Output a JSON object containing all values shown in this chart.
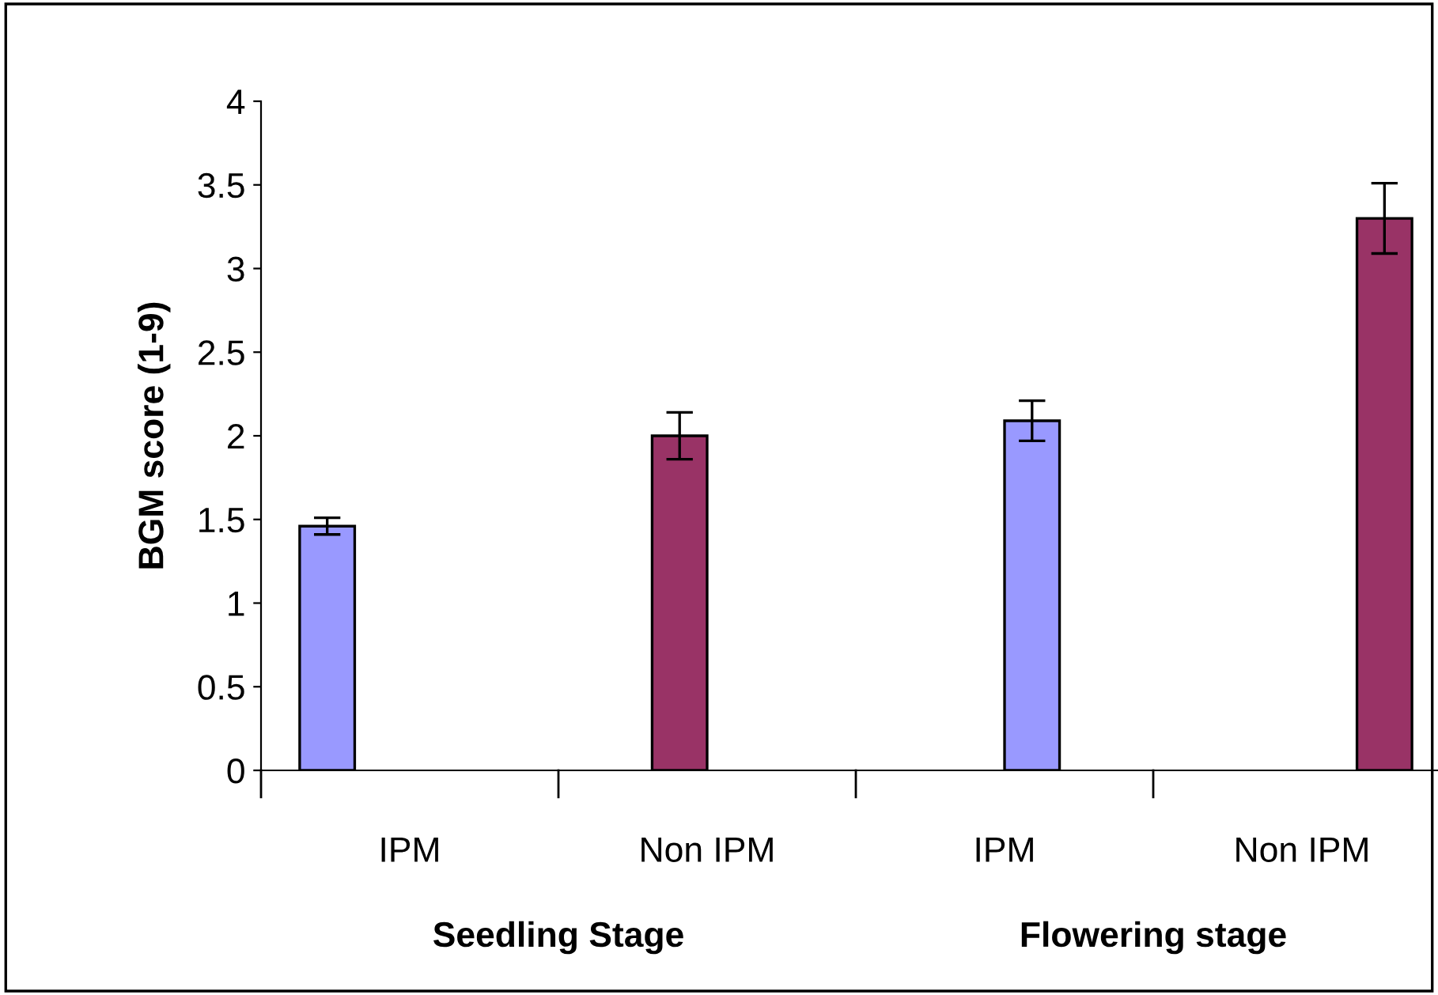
{
  "chart_data": {
    "type": "bar",
    "ylabel": "BGM score (1-9)",
    "categories": [
      "IPM",
      "Non IPM",
      "IPM",
      "Non IPM"
    ],
    "series": [
      {
        "color": "#9999ff",
        "values": [
          1.46,
          null,
          null,
          null
        ],
        "errors": [
          0.05,
          null,
          null,
          null
        ]
      },
      {
        "color": "#993366",
        "values": [
          null,
          2.0,
          null,
          null
        ],
        "errors": [
          null,
          0.14,
          null,
          null
        ]
      },
      {
        "color": "#9999ff",
        "values": [
          null,
          null,
          2.09,
          null
        ],
        "errors": [
          null,
          null,
          0.12,
          null
        ]
      },
      {
        "color": "#993366",
        "values": [
          null,
          null,
          null,
          3.3
        ],
        "errors": [
          null,
          null,
          null,
          0.21
        ]
      }
    ],
    "annotations": [
      "Seedling Stage",
      "Flowering stage"
    ],
    "ylim": [
      0,
      4
    ],
    "yticks": [
      0,
      0.5,
      1,
      1.5,
      2,
      2.5,
      3,
      3.5,
      4
    ],
    "grid": false,
    "legend": false
  }
}
